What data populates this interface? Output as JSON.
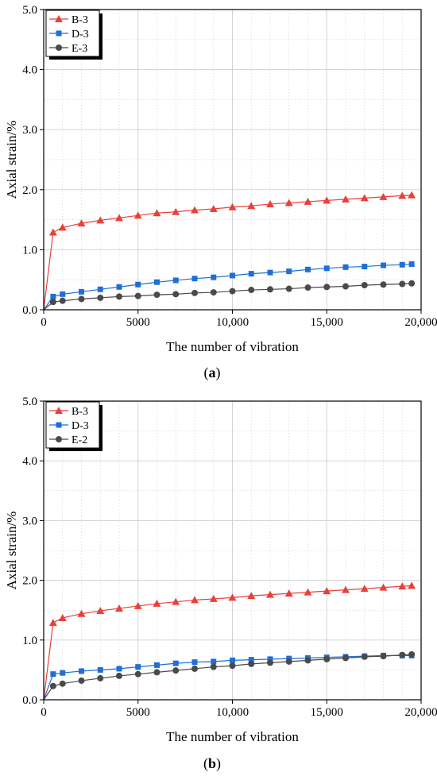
{
  "figure": {
    "captions": [
      "(a)",
      "(b)"
    ],
    "caption_parts": [
      {
        "open": "(",
        "letter": "a",
        "close": ")"
      },
      {
        "open": "(",
        "letter": "b",
        "close": ")"
      }
    ]
  },
  "colors": {
    "B-3": "#e8403a",
    "D-3": "#1f6fd6",
    "E": "#4a4a4a",
    "grid": "#cfcfcf",
    "axis": "#000000"
  },
  "chart_data": [
    {
      "type": "line",
      "panel": "a",
      "xlabel": "The number of vibration",
      "ylabel": "Axial strain/%",
      "xlim": [
        0,
        20000
      ],
      "ylim": [
        0,
        5.0
      ],
      "xticks": [
        0,
        5000,
        10000,
        15000,
        20000
      ],
      "xtick_labels": [
        "0",
        "5000",
        "10,000",
        "15,000",
        "20,000"
      ],
      "yticks": [
        0,
        1,
        2,
        3,
        4,
        5
      ],
      "ytick_labels": [
        "0.0",
        "1.0",
        "2.0",
        "3.0",
        "4.0",
        "5.0"
      ],
      "grid": true,
      "legend_position": "top-left",
      "series": [
        {
          "name": "B-3",
          "marker": "triangle",
          "color_key": "B-3",
          "x": [
            0,
            500,
            1000,
            2000,
            3000,
            4000,
            5000,
            6000,
            7000,
            8000,
            9000,
            10000,
            11000,
            12000,
            13000,
            14000,
            15000,
            16000,
            17000,
            18000,
            19000,
            19500
          ],
          "y": [
            0,
            1.29,
            1.37,
            1.44,
            1.49,
            1.53,
            1.57,
            1.61,
            1.63,
            1.66,
            1.68,
            1.71,
            1.73,
            1.76,
            1.78,
            1.8,
            1.82,
            1.84,
            1.86,
            1.88,
            1.9,
            1.91
          ]
        },
        {
          "name": "D-3",
          "marker": "square",
          "color_key": "D-3",
          "x": [
            0,
            500,
            1000,
            2000,
            3000,
            4000,
            5000,
            6000,
            7000,
            8000,
            9000,
            10000,
            11000,
            12000,
            13000,
            14000,
            15000,
            16000,
            17000,
            18000,
            19000,
            19500
          ],
          "y": [
            0,
            0.22,
            0.26,
            0.3,
            0.34,
            0.38,
            0.42,
            0.46,
            0.49,
            0.52,
            0.54,
            0.57,
            0.6,
            0.62,
            0.64,
            0.67,
            0.69,
            0.71,
            0.72,
            0.74,
            0.75,
            0.76
          ]
        },
        {
          "name": "E-3",
          "marker": "circle",
          "color_key": "E",
          "x": [
            0,
            500,
            1000,
            2000,
            3000,
            4000,
            5000,
            6000,
            7000,
            8000,
            9000,
            10000,
            11000,
            12000,
            13000,
            14000,
            15000,
            16000,
            17000,
            18000,
            19000,
            19500
          ],
          "y": [
            0,
            0.13,
            0.15,
            0.18,
            0.2,
            0.22,
            0.23,
            0.25,
            0.26,
            0.28,
            0.29,
            0.31,
            0.33,
            0.34,
            0.35,
            0.37,
            0.38,
            0.39,
            0.41,
            0.42,
            0.43,
            0.44
          ]
        }
      ]
    },
    {
      "type": "line",
      "panel": "b",
      "xlabel": "The number of vibration",
      "ylabel": "Axial strain/%",
      "xlim": [
        0,
        20000
      ],
      "ylim": [
        0,
        5.0
      ],
      "xticks": [
        0,
        5000,
        10000,
        15000,
        20000
      ],
      "xtick_labels": [
        "0",
        "5000",
        "10,000",
        "15,000",
        "20,000"
      ],
      "yticks": [
        0,
        1,
        2,
        3,
        4,
        5
      ],
      "ytick_labels": [
        "0.0",
        "1.0",
        "2.0",
        "3.0",
        "4.0",
        "5.0"
      ],
      "grid": true,
      "legend_position": "top-left",
      "series": [
        {
          "name": "B-3",
          "marker": "triangle",
          "color_key": "B-3",
          "x": [
            0,
            500,
            1000,
            2000,
            3000,
            4000,
            5000,
            6000,
            7000,
            8000,
            9000,
            10000,
            11000,
            12000,
            13000,
            14000,
            15000,
            16000,
            17000,
            18000,
            19000,
            19500
          ],
          "y": [
            0,
            1.29,
            1.37,
            1.44,
            1.49,
            1.53,
            1.57,
            1.61,
            1.64,
            1.67,
            1.69,
            1.71,
            1.74,
            1.76,
            1.78,
            1.8,
            1.82,
            1.84,
            1.86,
            1.88,
            1.9,
            1.91
          ]
        },
        {
          "name": "D-3",
          "marker": "square",
          "color_key": "D-3",
          "x": [
            0,
            500,
            1000,
            2000,
            3000,
            4000,
            5000,
            6000,
            7000,
            8000,
            9000,
            10000,
            11000,
            12000,
            13000,
            14000,
            15000,
            16000,
            17000,
            18000,
            19000,
            19500
          ],
          "y": [
            0,
            0.43,
            0.45,
            0.48,
            0.5,
            0.52,
            0.55,
            0.58,
            0.61,
            0.63,
            0.64,
            0.66,
            0.67,
            0.68,
            0.69,
            0.7,
            0.71,
            0.72,
            0.73,
            0.74,
            0.74,
            0.74
          ]
        },
        {
          "name": "E-2",
          "marker": "circle",
          "color_key": "E",
          "x": [
            0,
            500,
            1000,
            2000,
            3000,
            4000,
            5000,
            6000,
            7000,
            8000,
            9000,
            10000,
            11000,
            12000,
            13000,
            14000,
            15000,
            16000,
            17000,
            18000,
            19000,
            19500
          ],
          "y": [
            0,
            0.23,
            0.27,
            0.32,
            0.36,
            0.4,
            0.43,
            0.46,
            0.49,
            0.52,
            0.55,
            0.57,
            0.6,
            0.62,
            0.64,
            0.66,
            0.68,
            0.7,
            0.72,
            0.73,
            0.75,
            0.76
          ]
        }
      ]
    }
  ]
}
